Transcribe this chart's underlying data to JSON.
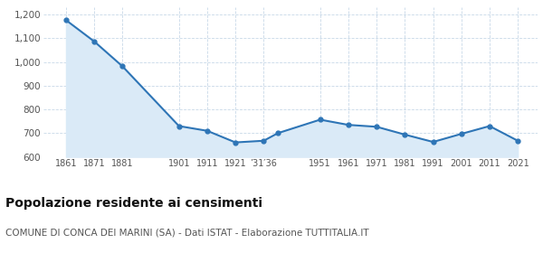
{
  "years": [
    1861,
    1871,
    1881,
    1901,
    1911,
    1921,
    1931,
    1936,
    1951,
    1961,
    1971,
    1981,
    1991,
    2001,
    2011,
    2021
  ],
  "population": [
    1177,
    1087,
    982,
    730,
    710,
    661,
    668,
    700,
    757,
    735,
    727,
    694,
    663,
    697,
    730,
    668
  ],
  "line_color": "#2e75b6",
  "fill_color": "#daeaf7",
  "marker_color": "#2e75b6",
  "grid_color": "#c8d8e8",
  "background_color": "#ffffff",
  "ylim": [
    600,
    1230
  ],
  "yticks": [
    600,
    700,
    800,
    900,
    1000,
    1100,
    1200
  ],
  "title": "Popolazione residente ai censimenti",
  "subtitle": "COMUNE DI CONCA DEI MARINI (SA) - Dati ISTAT - Elaborazione TUTTITALIA.IT",
  "title_fontsize": 10,
  "subtitle_fontsize": 7.5
}
